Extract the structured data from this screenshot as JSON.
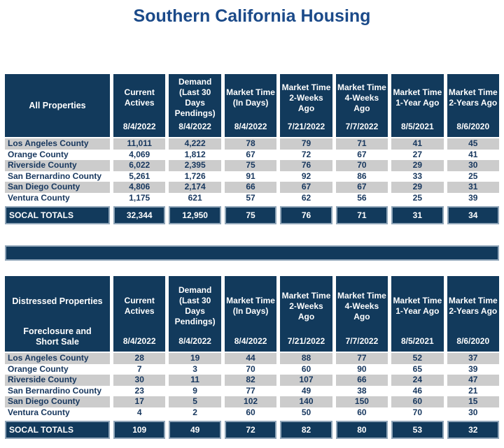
{
  "page_title": "Southern California Housing",
  "colors": {
    "navy": "#123A5C",
    "title_blue": "#1B4A89",
    "stripe_gray": "#CCCCCC",
    "text_navy": "#17375E",
    "cell_border": "#8FA5B8"
  },
  "chart_data": [
    {
      "type": "table",
      "title": "All Properties",
      "columns": [
        {
          "label": "Current Actives",
          "date": "8/4/2022"
        },
        {
          "label": "Demand (Last 30 Days Pendings)",
          "date": "8/4/2022"
        },
        {
          "label": "Market Time (In Days)",
          "date": "8/4/2022"
        },
        {
          "label": "Market Time 2-Weeks Ago",
          "date": "7/21/2022"
        },
        {
          "label": "Market Time 4-Weeks Ago",
          "date": "7/7/2022"
        },
        {
          "label": "Market Time 1-Year Ago",
          "date": "8/5/2021"
        },
        {
          "label": "Market Time 2-Years Ago",
          "date": "8/6/2020"
        }
      ],
      "rows": [
        {
          "name": "Los Angeles County",
          "values": [
            "11,011",
            "4,222",
            "78",
            "79",
            "71",
            "41",
            "45"
          ]
        },
        {
          "name": "Orange County",
          "values": [
            "4,069",
            "1,812",
            "67",
            "72",
            "67",
            "27",
            "41"
          ]
        },
        {
          "name": "Riverside County",
          "values": [
            "6,022",
            "2,395",
            "75",
            "76",
            "70",
            "29",
            "30"
          ]
        },
        {
          "name": "San Bernardino County",
          "values": [
            "5,261",
            "1,726",
            "91",
            "92",
            "86",
            "33",
            "25"
          ]
        },
        {
          "name": "San Diego County",
          "values": [
            "4,806",
            "2,174",
            "66",
            "67",
            "67",
            "29",
            "31"
          ]
        },
        {
          "name": "Ventura County",
          "values": [
            "1,175",
            "621",
            "57",
            "62",
            "56",
            "25",
            "39"
          ]
        }
      ],
      "totals": {
        "label": "SOCAL TOTALS",
        "values": [
          "32,344",
          "12,950",
          "75",
          "76",
          "71",
          "31",
          "34"
        ]
      }
    },
    {
      "type": "table",
      "title": "Distressed Properties",
      "subtitle": "Foreclosure and Short Sale",
      "columns": [
        {
          "label": "Current Actives",
          "date": "8/4/2022"
        },
        {
          "label": "Demand (Last 30 Days Pendings)",
          "date": "8/4/2022"
        },
        {
          "label": "Market Time (In Days)",
          "date": "8/4/2022"
        },
        {
          "label": "Market Time 2-Weeks Ago",
          "date": "7/21/2022"
        },
        {
          "label": "Market Time 4-Weeks Ago",
          "date": "7/7/2022"
        },
        {
          "label": "Market Time 1-Year Ago",
          "date": "8/5/2021"
        },
        {
          "label": "Market Time 2-Years Ago",
          "date": "8/6/2020"
        }
      ],
      "rows": [
        {
          "name": "Los Angeles County",
          "values": [
            "28",
            "19",
            "44",
            "88",
            "77",
            "52",
            "37"
          ]
        },
        {
          "name": "Orange County",
          "values": [
            "7",
            "3",
            "70",
            "60",
            "90",
            "65",
            "39"
          ]
        },
        {
          "name": "Riverside County",
          "values": [
            "30",
            "11",
            "82",
            "107",
            "66",
            "24",
            "47"
          ]
        },
        {
          "name": "San Bernardino County",
          "values": [
            "23",
            "9",
            "77",
            "49",
            "38",
            "46",
            "21"
          ]
        },
        {
          "name": "San Diego County",
          "values": [
            "17",
            "5",
            "102",
            "140",
            "150",
            "60",
            "15"
          ]
        },
        {
          "name": "Ventura County",
          "values": [
            "4",
            "2",
            "60",
            "50",
            "60",
            "70",
            "30"
          ]
        }
      ],
      "totals": {
        "label": "SOCAL TOTALS",
        "values": [
          "109",
          "49",
          "72",
          "82",
          "80",
          "53",
          "32"
        ]
      }
    }
  ]
}
